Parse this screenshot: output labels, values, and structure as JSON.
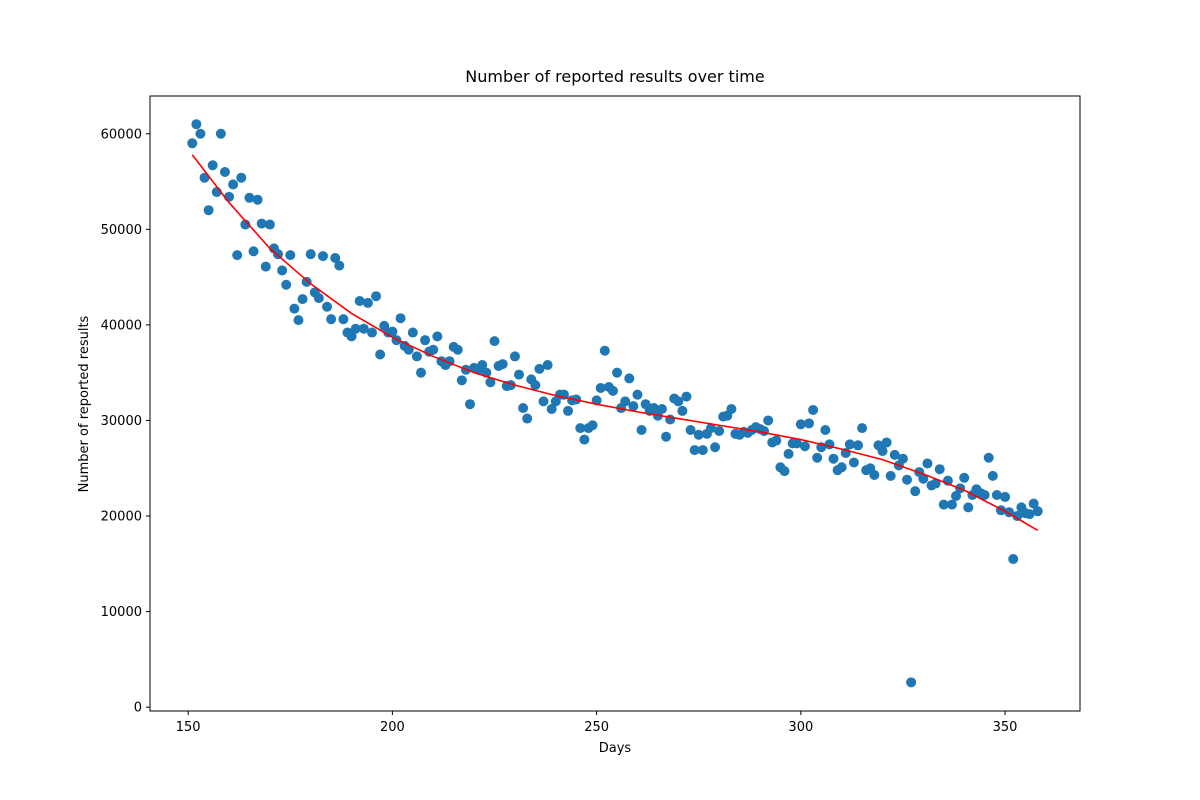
{
  "chart_data": {
    "type": "scatter",
    "title": "Number of reported results over time",
    "xlabel": "Days",
    "ylabel": "Number of reported results",
    "xlim": [
      140.65,
      368.35
    ],
    "ylim": [
      -400,
      63950
    ],
    "xticks": [
      150,
      200,
      250,
      300,
      350
    ],
    "yticks": [
      0,
      10000,
      20000,
      30000,
      40000,
      50000,
      60000
    ],
    "series": [
      {
        "type": "scatter",
        "color": "#1f77b4",
        "x": [
          151,
          152,
          153,
          154,
          155,
          156,
          157,
          158,
          159,
          160,
          161,
          162,
          163,
          164,
          165,
          166,
          167,
          168,
          169,
          170,
          171,
          172,
          173,
          174,
          175,
          176,
          177,
          178,
          179,
          180,
          181,
          182,
          183,
          184,
          185,
          186,
          187,
          188,
          189,
          190,
          191,
          192,
          193,
          194,
          195,
          196,
          197,
          198,
          199,
          200,
          201,
          202,
          203,
          204,
          205,
          206,
          207,
          208,
          209,
          210,
          211,
          212,
          213,
          214,
          215,
          216,
          217,
          218,
          219,
          220,
          221,
          222,
          223,
          224,
          225,
          226,
          227,
          228,
          229,
          230,
          231,
          232,
          233,
          234,
          235,
          236,
          237,
          238,
          239,
          240,
          241,
          242,
          243,
          244,
          245,
          246,
          247,
          248,
          249,
          250,
          251,
          252,
          253,
          254,
          255,
          256,
          257,
          258,
          259,
          260,
          261,
          262,
          263,
          264,
          265,
          266,
          267,
          268,
          269,
          270,
          271,
          272,
          273,
          274,
          275,
          276,
          277,
          278,
          279,
          280,
          281,
          282,
          283,
          284,
          285,
          286,
          287,
          288,
          289,
          290,
          291,
          292,
          293,
          294,
          295,
          296,
          297,
          298,
          299,
          300,
          301,
          302,
          303,
          304,
          305,
          306,
          307,
          308,
          309,
          310,
          311,
          312,
          313,
          314,
          315,
          316,
          317,
          318,
          319,
          320,
          321,
          322,
          323,
          324,
          325,
          326,
          327,
          328,
          329,
          330,
          331,
          332,
          333,
          334,
          335,
          336,
          337,
          338,
          339,
          340,
          341,
          342,
          343,
          344,
          345,
          346,
          347,
          348,
          349,
          350,
          351,
          352,
          353,
          354,
          355,
          356,
          357,
          358
        ],
        "values": [
          59000,
          61000,
          60000,
          55400,
          52000,
          56700,
          53900,
          60000,
          56000,
          53400,
          54700,
          47300,
          55400,
          50500,
          53300,
          47700,
          53100,
          50600,
          46100,
          50500,
          48000,
          47400,
          45700,
          44200,
          47300,
          41700,
          40500,
          42700,
          44500,
          47400,
          43400,
          42800,
          47200,
          41900,
          40600,
          47000,
          46200,
          40600,
          39200,
          38800,
          39600,
          42500,
          39600,
          42300,
          39200,
          43000,
          36900,
          39900,
          39200,
          39300,
          38400,
          40700,
          37800,
          37400,
          39200,
          36700,
          35000,
          38400,
          37200,
          37400,
          38800,
          36200,
          35800,
          36200,
          37700,
          37400,
          34200,
          35300,
          31700,
          35500,
          35300,
          35800,
          35000,
          34000,
          38300,
          35700,
          35900,
          33600,
          33700,
          36700,
          34800,
          31300,
          30200,
          34300,
          33700,
          35400,
          32000,
          35800,
          31200,
          32000,
          32700,
          32700,
          31000,
          32100,
          32200,
          29200,
          28000,
          29200,
          29500,
          32100,
          33400,
          37300,
          33500,
          33100,
          35000,
          31300,
          32000,
          34400,
          31500,
          32700,
          29000,
          31700,
          31000,
          31300,
          30500,
          31200,
          28300,
          30100,
          32300,
          32000,
          31000,
          32500,
          29000,
          26900,
          28500,
          26900,
          28600,
          29200,
          27200,
          28900,
          30400,
          30500,
          31200,
          28600,
          28500,
          28800,
          28700,
          29000,
          29300,
          29100,
          28900,
          30000,
          27700,
          27900,
          25100,
          24700,
          26500,
          27600,
          27600,
          29600,
          27300,
          29700,
          31100,
          26100,
          27200,
          29000,
          27500,
          26000,
          24800,
          25100,
          26600,
          27500,
          25600,
          27400,
          29200,
          24800,
          25000,
          24300,
          27400,
          26800,
          27700,
          24200,
          26400,
          25300,
          26000,
          23800,
          2600,
          22600,
          24600,
          23900,
          25500,
          23200,
          23400,
          24900,
          21200,
          23700,
          21200,
          22100,
          22900,
          24000,
          20900,
          22200,
          22800,
          22400,
          22200,
          26100,
          24200,
          22200,
          20600,
          22000,
          20400,
          15500,
          20000,
          20900,
          20300,
          20200,
          21300,
          20500
        ]
      },
      {
        "type": "line",
        "color": "#ff0000",
        "x": [
          151,
          160,
          170,
          180,
          190,
          200,
          210,
          220,
          230,
          240,
          250,
          260,
          270,
          280,
          290,
          300,
          310,
          320,
          330,
          340,
          350,
          358
        ],
        "values": [
          57800,
          52800,
          48000,
          44300,
          41200,
          38700,
          36700,
          35000,
          33700,
          32600,
          31700,
          30900,
          30200,
          29500,
          28800,
          28000,
          27000,
          25900,
          24400,
          22700,
          20500,
          18500
        ]
      }
    ]
  }
}
